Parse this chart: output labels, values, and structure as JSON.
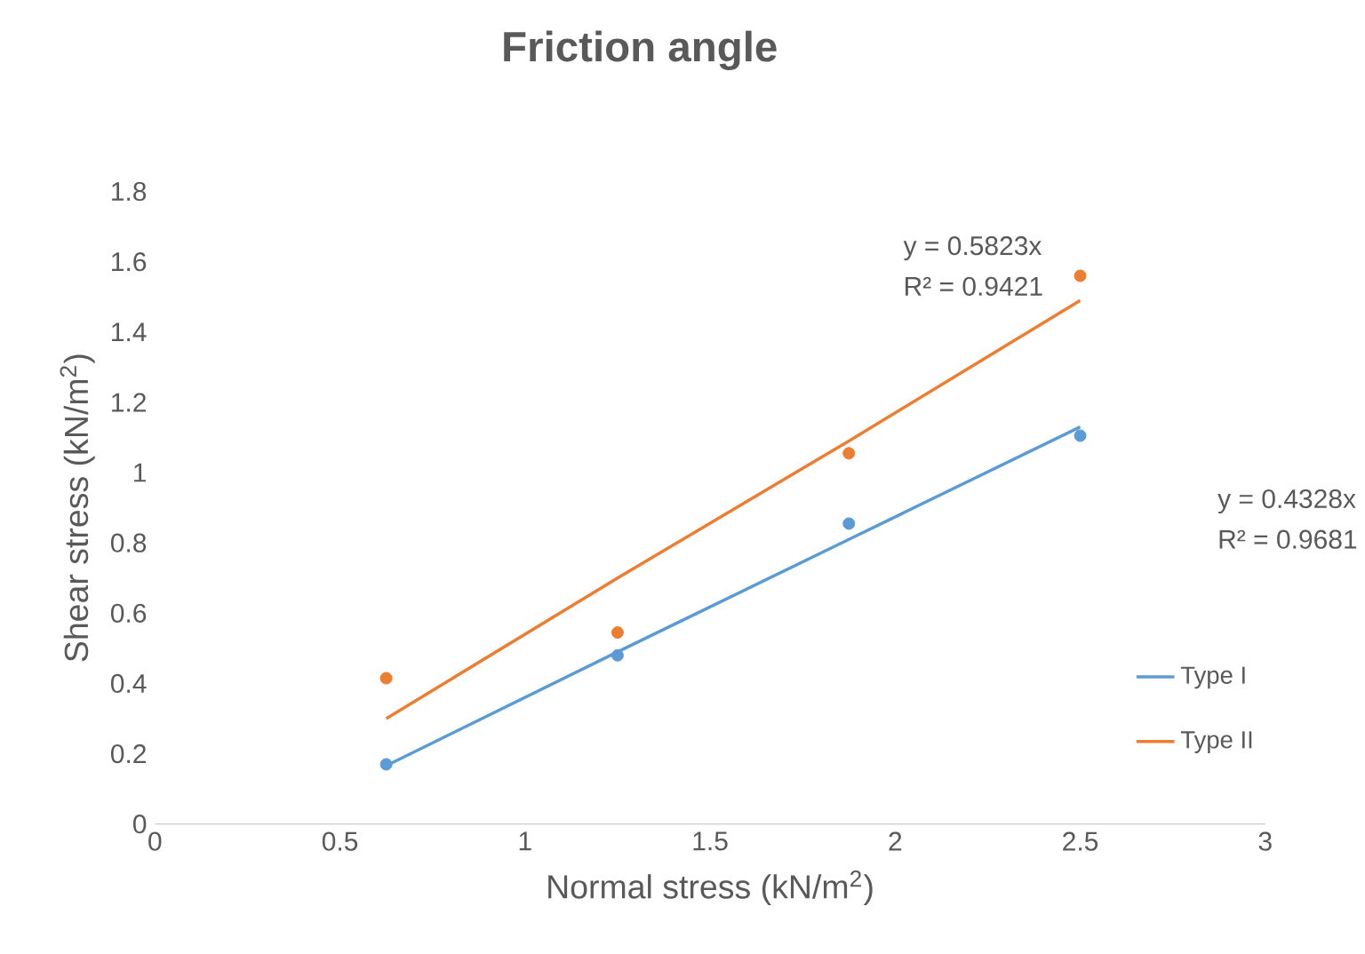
{
  "chart_data": {
    "type": "scatter",
    "title": "Friction angle",
    "xlabel": "Normal stress (kN/m$^{2}$)",
    "ylabel": "Shear stress (kN/m$^{2}$)",
    "x": [
      0.625,
      1.25,
      1.875,
      2.5
    ],
    "series": [
      {
        "color": "#5b9bd5",
        "marker": "circle",
        "values": [
          0.17,
          0.48,
          0.855,
          1.105
        ]
      },
      {
        "color": "#ed7d31",
        "marker": "circle",
        "values": [
          0.415,
          0.545,
          1.055,
          1.56
        ]
      },
      {
        "type": "line",
        "name": "Type I",
        "color": "#5b9bd5",
        "marker": "none",
        "values": [
          0.166,
          0.49,
          0.81,
          1.13
        ]
      },
      {
        "type": "line",
        "name": "Type II",
        "color": "#ed7d31",
        "marker": "none",
        "values": [
          0.3,
          0.7,
          1.09,
          1.49
        ]
      }
    ],
    "annotations": [
      "y = 0.5823x",
      "R² = 0.9421",
      "y = 0.4328x",
      "R² = 0.9681"
    ],
    "xlim": [
      0,
      3
    ],
    "xticks": [
      0,
      0.5,
      1,
      1.5,
      2,
      2.5,
      3
    ],
    "ylim": [
      0,
      1.8
    ],
    "yticks": [
      0,
      0.2,
      0.4,
      0.6,
      0.8,
      1,
      1.2,
      1.4,
      1.6,
      1.8
    ],
    "grid": false,
    "legend": "right"
  }
}
